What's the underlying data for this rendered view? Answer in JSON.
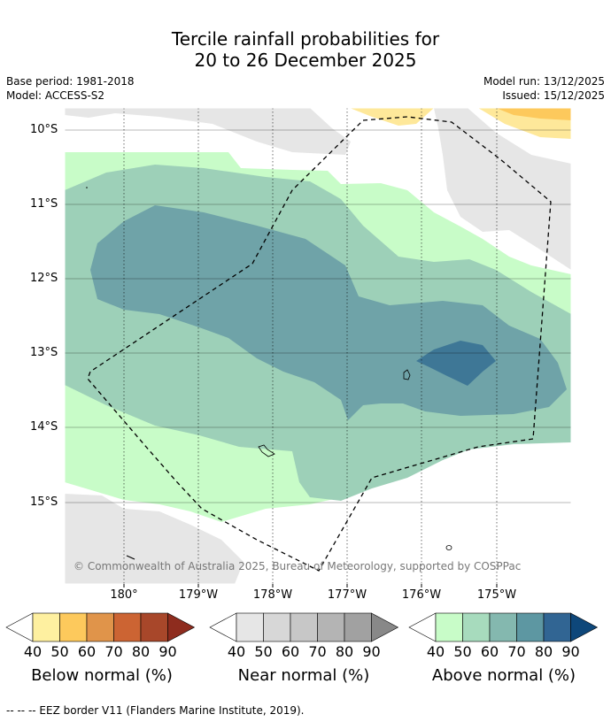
{
  "title": {
    "line1": "Tercile rainfall probabilities for",
    "line2": "20 to 26 December 2025"
  },
  "meta": {
    "base_period": "Base period: 1981-2018",
    "model": "Model: ACCESS-S2",
    "model_run": "Model run: 13/12/2025",
    "issued": "Issued: 15/12/2025"
  },
  "axes": {
    "lat_labels": [
      "10°S",
      "11°S",
      "12°S",
      "13°S",
      "14°S",
      "15°S"
    ],
    "lon_labels": [
      "180°",
      "179°W",
      "178°W",
      "177°W",
      "176°W",
      "175°W"
    ]
  },
  "copyright": "© Commonwealth of Australia 2025, Bureau of Meteorology, supported by COSPPac",
  "colorbars": [
    {
      "name": "below",
      "label": "Below normal (%)",
      "ticks": [
        "40",
        "50",
        "60",
        "70",
        "80",
        "90"
      ],
      "colors": [
        "#fef0a0",
        "#fdc95c",
        "#e0944a",
        "#cc6433",
        "#a8472a",
        "#8e2c1e"
      ]
    },
    {
      "name": "near",
      "label": "Near normal (%)",
      "ticks": [
        "40",
        "50",
        "60",
        "70",
        "80",
        "90"
      ],
      "colors": [
        "#e6e6e6",
        "#d7d7d7",
        "#c7c7c7",
        "#b4b4b4",
        "#a1a1a1",
        "#888888"
      ]
    },
    {
      "name": "above",
      "label": "Above normal (%)",
      "ticks": [
        "40",
        "50",
        "60",
        "70",
        "80",
        "90"
      ],
      "colors": [
        "#c8fcc8",
        "#a7dbbd",
        "#84b8af",
        "#5d97a2",
        "#316593",
        "#0e477a"
      ]
    }
  ],
  "footnote": "--  --  -- EEZ border V11 (Flanders Marine Institute, 2019).",
  "colors": {
    "above_40": "#c8fcc8",
    "above_50": "#9dd0b8",
    "above_60": "#6fa3a8",
    "above_70": "#3e7796",
    "near_40": "#e6e6e6",
    "below_40": "#fee89a",
    "below_50": "#fdc95c"
  }
}
